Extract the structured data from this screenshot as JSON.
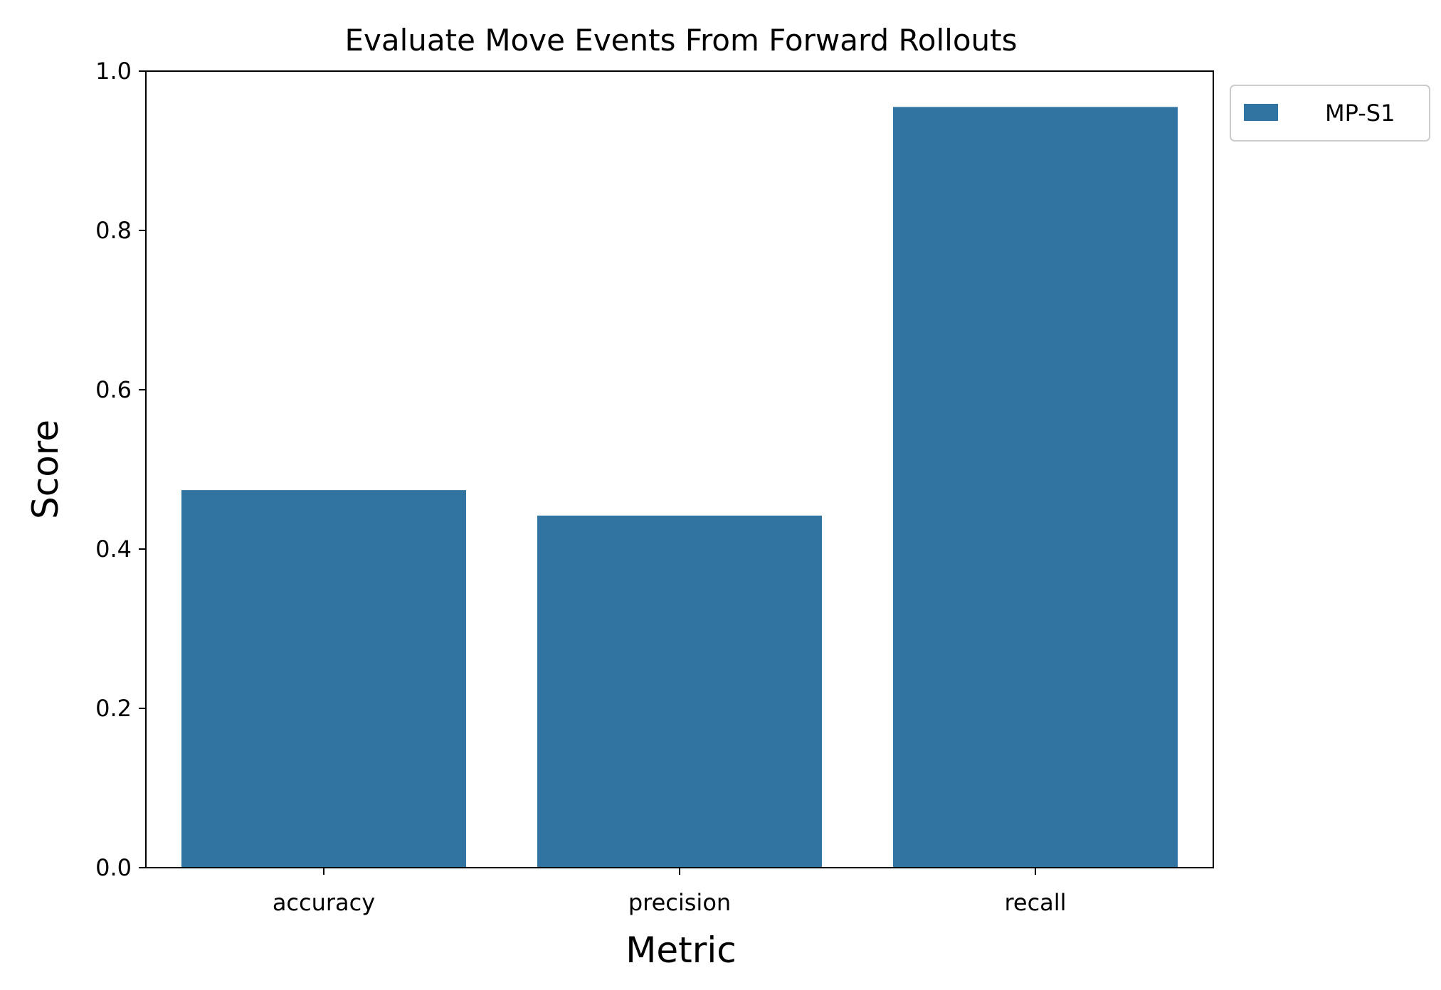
{
  "chart_data": {
    "type": "bar",
    "title": "Evaluate Move Events From Forward Rollouts",
    "xlabel": "Metric",
    "ylabel": "Score",
    "categories": [
      "accuracy",
      "precision",
      "recall"
    ],
    "series": [
      {
        "name": "MP-S1",
        "values": [
          0.474,
          0.442,
          0.955
        ],
        "color": "#3274a1"
      }
    ],
    "ylim": [
      0,
      1.0
    ],
    "yticks": [
      "0.0",
      "0.2",
      "0.4",
      "0.6",
      "0.8",
      "1.0"
    ],
    "grid": false,
    "legend": "outside-top-right"
  }
}
